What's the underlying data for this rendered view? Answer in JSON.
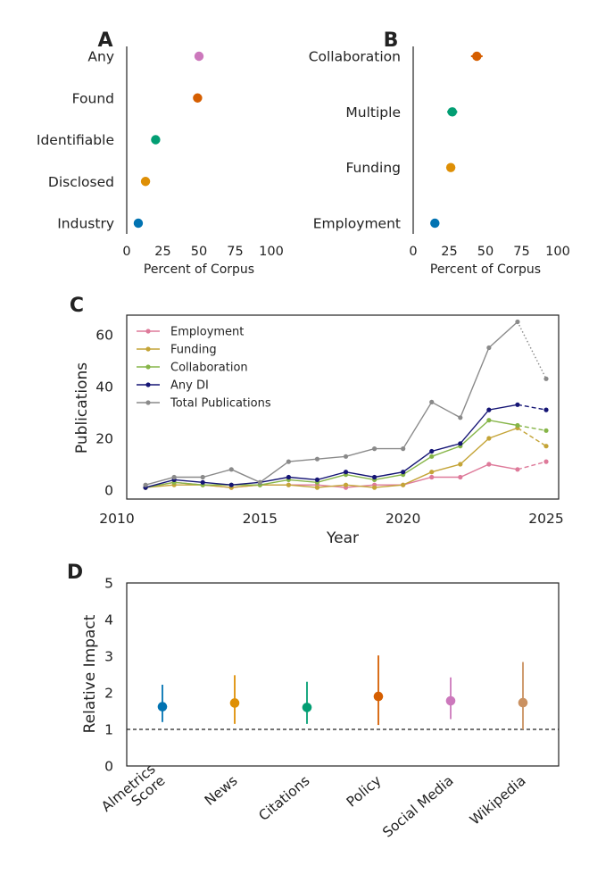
{
  "chart_data": [
    {
      "panel": "A",
      "type": "scatter",
      "categories": [
        "Any",
        "Found",
        "Identifiable",
        "Disclosed",
        "Industry"
      ],
      "values": [
        50,
        49,
        20,
        13,
        8
      ],
      "errors": [
        3,
        3,
        2.5,
        2,
        1.5
      ],
      "colors": [
        "#CC78BC",
        "#D55E00",
        "#029E73",
        "#DE8F05",
        "#0173B2"
      ],
      "xlabel": "Percent of Corpus",
      "xlim": [
        0,
        100
      ],
      "xticks": [
        "0",
        "25",
        "50",
        "75",
        "100"
      ]
    },
    {
      "panel": "B",
      "type": "scatter",
      "categories": [
        "Collaboration",
        "Multiple",
        "Funding",
        "Employment"
      ],
      "values": [
        44,
        27,
        26,
        15
      ],
      "errors": [
        4,
        3.5,
        3,
        3
      ],
      "colors": [
        "#D55E00",
        "#029E73",
        "#DE8F05",
        "#0173B2"
      ],
      "xlabel": "Percent of Corpus",
      "xlim": [
        0,
        100
      ],
      "xticks": [
        "0",
        "25",
        "50",
        "75",
        "100"
      ]
    },
    {
      "panel": "C",
      "type": "line",
      "xlabel": "Year",
      "ylabel": "Publications",
      "xlim": [
        2010,
        2025
      ],
      "ylim": [
        0,
        65
      ],
      "xticks": [
        "2010",
        "2015",
        "2020",
        "2025"
      ],
      "yticks": [
        "0",
        "20",
        "40",
        "60"
      ],
      "legend_position": "upper-left",
      "x": [
        2011,
        2012,
        2013,
        2014,
        2015,
        2016,
        2017,
        2018,
        2019,
        2020,
        2021,
        2022,
        2023,
        2024,
        2025
      ],
      "series": [
        {
          "name": "Employment",
          "color": "#DE7A9A",
          "values": [
            1,
            3,
            2,
            1,
            2,
            2,
            2,
            1,
            2,
            2,
            5,
            5,
            10,
            8,
            11
          ]
        },
        {
          "name": "Funding",
          "color": "#C4A437",
          "values": [
            1,
            2,
            2,
            1,
            2,
            2,
            1,
            2,
            1,
            2,
            7,
            10,
            20,
            24,
            17
          ]
        },
        {
          "name": "Collaboration",
          "color": "#86B548",
          "values": [
            1,
            3,
            2,
            2,
            2,
            4,
            3,
            6,
            4,
            6,
            13,
            17,
            27,
            25,
            23
          ]
        },
        {
          "name": "Any DI",
          "color": "#151575",
          "values": [
            1,
            4,
            3,
            2,
            3,
            5,
            4,
            7,
            5,
            7,
            15,
            18,
            31,
            33,
            31
          ]
        },
        {
          "name": "Total Publications",
          "color": "#8A8A8A",
          "values": [
            2,
            5,
            5,
            8,
            3,
            11,
            12,
            13,
            16,
            16,
            34,
            28,
            55,
            65,
            43
          ]
        }
      ],
      "projected_from": 2024
    },
    {
      "panel": "D",
      "type": "scatter",
      "ylabel": "Relative Impact",
      "ylim": [
        0,
        5
      ],
      "yticks": [
        "0",
        "1",
        "2",
        "3",
        "4",
        "5"
      ],
      "reference_line": 1,
      "categories": [
        "Almetrics\nScore",
        "News",
        "Citations",
        "Policy",
        "Social Media",
        "Wikipedia"
      ],
      "values": [
        1.62,
        1.72,
        1.6,
        1.9,
        1.78,
        1.73
      ],
      "ci_low": [
        1.2,
        1.15,
        1.15,
        1.12,
        1.28,
        1.0
      ],
      "ci_high": [
        2.22,
        2.48,
        2.3,
        3.02,
        2.42,
        2.84
      ],
      "colors": [
        "#0173B2",
        "#DE8F05",
        "#029E73",
        "#D55E00",
        "#CC78BC",
        "#CA9161"
      ]
    }
  ]
}
